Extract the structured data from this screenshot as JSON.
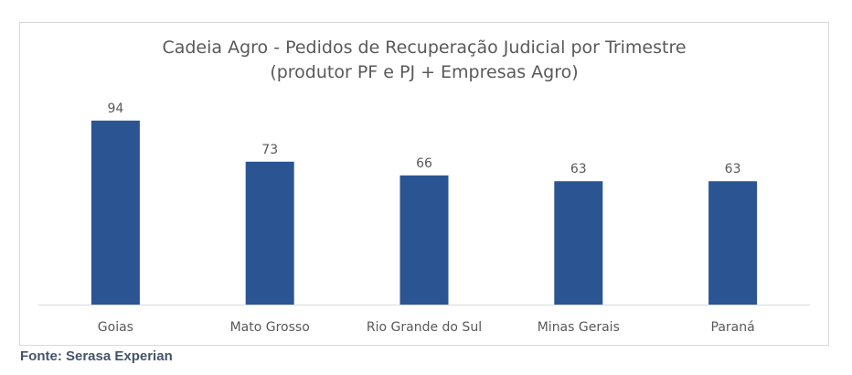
{
  "chart_data": {
    "type": "bar",
    "title_line1": "Cadeia Agro - Pedidos de Recuperação Judicial por Trimestre",
    "title_line2": "(produtor PF e PJ + Empresas Agro)",
    "categories": [
      "Goias",
      "Mato Grosso",
      "Rio Grande do Sul",
      "Minas Gerais",
      "Paraná"
    ],
    "values": [
      94,
      73,
      66,
      63,
      63
    ],
    "xlabel": "",
    "ylabel": "",
    "ylim": [
      0,
      100
    ],
    "grid": false,
    "data_labels": true,
    "bar_color": "#2a5592"
  },
  "source": "Fonte: Serasa Experian"
}
